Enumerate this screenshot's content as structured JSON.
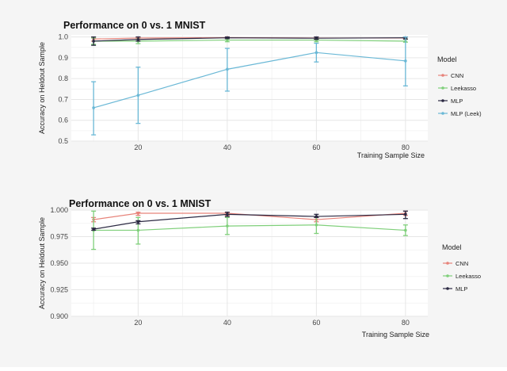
{
  "chart_data": [
    {
      "type": "line",
      "title": "Performance on 0 vs. 1 MNIST",
      "xlabel": "Training Sample Size",
      "ylabel": "Accuracy on Heldout Sample",
      "xlim": [
        5,
        85
      ],
      "ylim": [
        0.5,
        1.01
      ],
      "x_ticks": [
        20,
        40,
        60,
        80
      ],
      "y_ticks": [
        0.5,
        0.6,
        0.7,
        0.8,
        0.9,
        1.0
      ],
      "y_tick_labels": [
        "0.5",
        "0.6",
        "0.7",
        "0.8",
        "0.9",
        "1.0"
      ],
      "grid": true,
      "legend_title": "Model",
      "legend_position": "right",
      "x": [
        10,
        20,
        40,
        60,
        80
      ],
      "series": [
        {
          "name": "CNN",
          "color": "#e7837a",
          "values": [
            0.99,
            0.995,
            0.997,
            0.995,
            0.995
          ],
          "err_low": [
            0.98,
            0.988,
            0.993,
            0.99,
            0.99
          ],
          "err_high": [
            1.0,
            1.0,
            1.0,
            1.0,
            1.0
          ]
        },
        {
          "name": "Leekasso",
          "color": "#7fcf7a",
          "values": [
            0.98,
            0.98,
            0.985,
            0.985,
            0.98
          ],
          "err_low": [
            0.965,
            0.968,
            0.977,
            0.977,
            0.975
          ],
          "err_high": [
            0.995,
            0.99,
            0.993,
            0.993,
            0.99
          ]
        },
        {
          "name": "MLP",
          "color": "#2b2942",
          "values": [
            0.98,
            0.988,
            0.996,
            0.994,
            0.996
          ],
          "err_low": [
            0.96,
            0.98,
            0.992,
            0.988,
            0.99
          ],
          "err_high": [
            1.0,
            1.0,
            1.0,
            1.0,
            1.0
          ]
        },
        {
          "name": "MLP (Leek)",
          "color": "#6ab8d6",
          "values": [
            0.66,
            0.72,
            0.845,
            0.925,
            0.885
          ],
          "err_low": [
            0.53,
            0.585,
            0.74,
            0.88,
            0.765
          ],
          "err_high": [
            0.785,
            0.855,
            0.945,
            0.97,
            1.0
          ]
        }
      ]
    },
    {
      "type": "line",
      "title": "Performance on 0 vs. 1 MNIST",
      "xlabel": "Training Sample Size",
      "ylabel": "Accuracy on Heldout Sample",
      "xlim": [
        5,
        85
      ],
      "ylim": [
        0.9,
        1.0
      ],
      "x_ticks": [
        20,
        40,
        60,
        80
      ],
      "y_ticks": [
        0.9,
        0.925,
        0.95,
        0.975,
        1.0
      ],
      "y_tick_labels": [
        "0.900",
        "0.925",
        "0.950",
        "0.975",
        "1.000"
      ],
      "grid": true,
      "legend_title": "Model",
      "legend_position": "right",
      "x": [
        10,
        20,
        40,
        60,
        80
      ],
      "series": [
        {
          "name": "CNN",
          "color": "#e7837a",
          "values": [
            0.991,
            0.997,
            0.997,
            0.991,
            0.997
          ],
          "err_low": [
            0.989,
            0.995,
            0.995,
            0.989,
            0.995
          ],
          "err_high": [
            0.993,
            0.998,
            0.998,
            0.993,
            0.999
          ]
        },
        {
          "name": "Leekasso",
          "color": "#7fcf7a",
          "values": [
            0.981,
            0.981,
            0.985,
            0.986,
            0.981
          ],
          "err_low": [
            0.963,
            0.968,
            0.977,
            0.978,
            0.976
          ],
          "err_high": [
            0.999,
            0.993,
            0.993,
            0.994,
            0.986
          ]
        },
        {
          "name": "MLP",
          "color": "#2b2942",
          "values": [
            0.982,
            0.989,
            0.996,
            0.994,
            0.996
          ],
          "err_low": [
            0.981,
            0.987,
            0.994,
            0.993,
            0.992
          ],
          "err_high": [
            0.983,
            0.99,
            0.998,
            0.996,
            0.999
          ]
        }
      ]
    }
  ]
}
